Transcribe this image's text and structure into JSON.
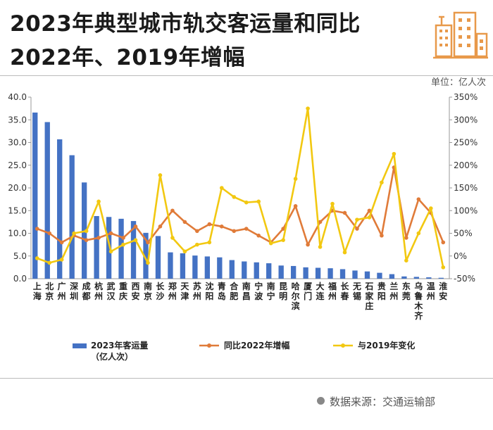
{
  "page": {
    "title_line1": "2023年典型城市轨交客运量和同比",
    "title_line2": "2022年、2019年增幅",
    "unit": "单位：亿人次",
    "source": "数据来源：交通运输部"
  },
  "colors": {
    "bar": "#4472c4",
    "line_2022": "#e07b39",
    "line_2019": "#f2c811",
    "logo": "#e8994a"
  },
  "chart_data": {
    "type": "bar",
    "categories": [
      "上海",
      "北京",
      "广州",
      "深圳",
      "成都",
      "杭州",
      "武汉",
      "重庆",
      "西安",
      "南京",
      "长沙",
      "郑州",
      "天津",
      "苏州",
      "沈阳",
      "青岛",
      "合肥",
      "南昌",
      "宁波",
      "南宁",
      "昆明",
      "哈尔滨",
      "厦门",
      "大连",
      "福州",
      "长春",
      "无锡",
      "石家庄",
      "贵阳",
      "兰州",
      "东莞",
      "乌鲁木齐",
      "温州",
      "淮安"
    ],
    "left_axis": {
      "min": 0,
      "max": 40,
      "ticks": [
        "0.0",
        "5.0",
        "10.0",
        "15.0",
        "20.0",
        "25.0",
        "30.0",
        "35.0",
        "40.0"
      ]
    },
    "right_axis": {
      "min": -50,
      "max": 350,
      "ticks": [
        "-50%",
        "0%",
        "50%",
        "100%",
        "150%",
        "200%",
        "250%",
        "300%",
        "350%"
      ]
    },
    "series": [
      {
        "name": "2023年客运量（亿人次）",
        "kind": "bar",
        "axis": "left",
        "values": [
          36.6,
          34.5,
          30.7,
          27.2,
          21.2,
          13.8,
          13.6,
          13.2,
          12.7,
          10.1,
          9.4,
          5.8,
          5.6,
          5.1,
          4.9,
          4.7,
          4.1,
          3.8,
          3.6,
          3.4,
          2.9,
          2.8,
          2.5,
          2.4,
          2.3,
          2.1,
          1.8,
          1.6,
          1.3,
          1.0,
          0.5,
          0.4,
          0.3,
          0.2
        ]
      },
      {
        "name": "同比2022年增幅",
        "kind": "line",
        "axis": "right",
        "values": [
          60,
          50,
          30,
          45,
          35,
          40,
          50,
          40,
          65,
          30,
          65,
          100,
          75,
          55,
          70,
          65,
          55,
          60,
          45,
          30,
          60,
          110,
          25,
          75,
          100,
          95,
          60,
          100,
          45,
          195,
          40,
          125,
          95,
          30
        ]
      },
      {
        "name": "与2019年变化",
        "kind": "line",
        "axis": "right",
        "values": [
          -5,
          -15,
          -8,
          50,
          55,
          120,
          10,
          25,
          35,
          -15,
          178,
          40,
          10,
          25,
          30,
          150,
          130,
          118,
          120,
          28,
          35,
          170,
          325,
          20,
          115,
          8,
          80,
          85,
          162,
          225,
          -10,
          50,
          105,
          -25
        ]
      }
    ]
  }
}
